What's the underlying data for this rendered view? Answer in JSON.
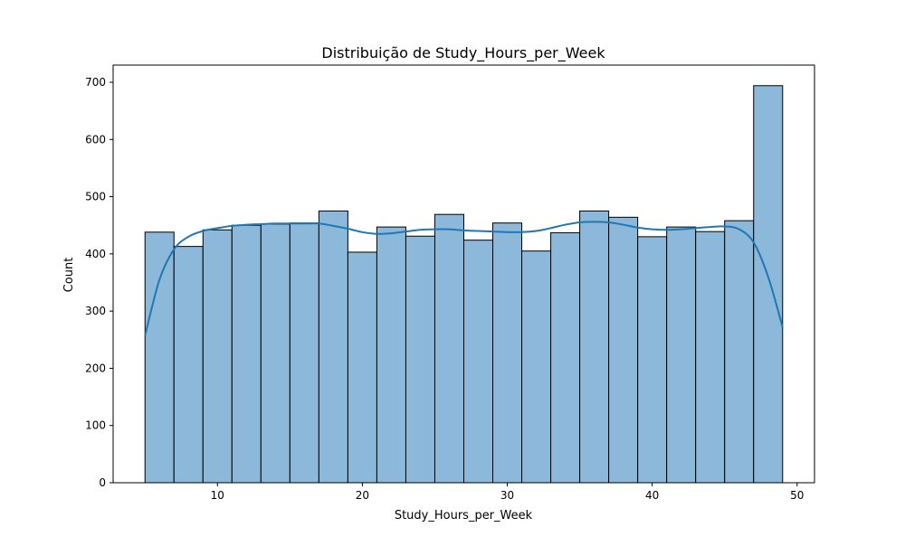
{
  "chart_data": {
    "type": "bar",
    "title": "Distribuição de Study_Hours_per_Week",
    "xlabel": "Study_Hours_per_Week",
    "ylabel": "Count",
    "xlim": [
      2.8,
      51.2
    ],
    "ylim": [
      0,
      730
    ],
    "xticks": [
      10,
      20,
      30,
      40,
      50
    ],
    "yticks": [
      0,
      100,
      200,
      300,
      400,
      500,
      600,
      700
    ],
    "bin_edges": [
      5,
      7,
      9,
      11,
      13,
      15,
      17,
      19,
      21,
      23,
      25,
      27,
      29,
      31,
      33,
      35,
      37,
      39,
      41,
      43,
      45,
      47,
      49
    ],
    "values": [
      438,
      413,
      442,
      450,
      452,
      454,
      475,
      403,
      447,
      431,
      469,
      424,
      454,
      405,
      437,
      475,
      464,
      430,
      447,
      439,
      458,
      694
    ],
    "kde": {
      "x": [
        5,
        6,
        7,
        8,
        9,
        10,
        11,
        12,
        13,
        14,
        15,
        16,
        17,
        18,
        19,
        20,
        21,
        22,
        23,
        24,
        25,
        26,
        27,
        28,
        29,
        30,
        31,
        32,
        33,
        34,
        35,
        36,
        37,
        38,
        39,
        40,
        41,
        42,
        43,
        44,
        45,
        46,
        47,
        48,
        49
      ],
      "y": [
        257,
        355,
        408,
        430,
        440,
        445,
        449,
        451,
        452,
        453,
        453,
        453,
        453,
        449,
        444,
        438,
        435,
        436,
        439,
        442,
        443,
        443,
        441,
        440,
        439,
        438,
        438,
        440,
        445,
        451,
        455,
        456,
        455,
        451,
        446,
        443,
        442,
        443,
        445,
        447,
        448,
        443,
        420,
        360,
        272
      ]
    },
    "bar_color": "#8cb8d9",
    "bar_edge_color": "#000000",
    "kde_color": "#1f77b4",
    "grid": false,
    "legend": "none"
  }
}
